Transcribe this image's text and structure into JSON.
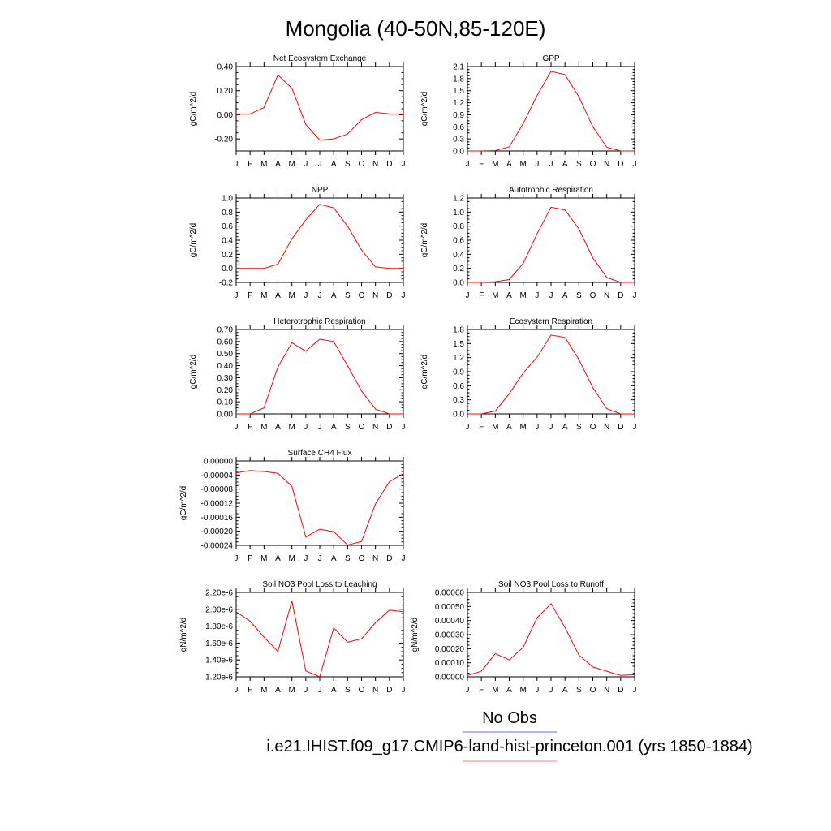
{
  "figure": {
    "title": "Mongolia (40-50N,85-120E)",
    "legend": [
      {
        "label": "No Obs",
        "color": "#6b6bff"
      },
      {
        "label": "i.e21.IHIST.f09_g17.CMIP6-land-hist-princeton.001 (yrs 1850-1884)",
        "color": "#ff7b7b"
      }
    ],
    "series_color": "#ff0000"
  },
  "chart_data": [
    {
      "type": "line",
      "title": "Net Ecosystem Exchange",
      "ylabel": "gC/m^2/d",
      "categories": [
        "J",
        "F",
        "M",
        "A",
        "M",
        "J",
        "J",
        "A",
        "S",
        "O",
        "N",
        "D",
        "J"
      ],
      "ylim": [
        -0.3,
        0.4
      ],
      "yticks": [
        -0.2,
        0.0,
        0.2,
        0.4
      ],
      "ytick_labels": [
        "-0.20",
        "0.00",
        "0.20",
        "0.40"
      ],
      "values": [
        0.005,
        0.007,
        0.06,
        0.33,
        0.22,
        -0.08,
        -0.21,
        -0.2,
        -0.16,
        -0.04,
        0.02,
        0.008,
        0.005
      ]
    },
    {
      "type": "line",
      "title": "GPP",
      "ylabel": "gC/m^2/d",
      "categories": [
        "J",
        "F",
        "M",
        "A",
        "M",
        "J",
        "J",
        "A",
        "S",
        "O",
        "N",
        "D",
        "J"
      ],
      "ylim": [
        0,
        2.1
      ],
      "yticks": [
        0.0,
        0.3,
        0.6,
        0.9,
        1.2,
        1.5,
        1.8,
        2.1
      ],
      "ytick_labels": [
        "0.0",
        "0.3",
        "0.6",
        "0.9",
        "1.2",
        "1.5",
        "1.8",
        "2.1"
      ],
      "values": [
        0.0,
        0.0,
        0.01,
        0.1,
        0.68,
        1.38,
        1.98,
        1.9,
        1.35,
        0.6,
        0.09,
        0.0,
        0.0
      ]
    },
    {
      "type": "line",
      "title": "NPP",
      "ylabel": "gC/m^2/d",
      "categories": [
        "J",
        "F",
        "M",
        "A",
        "M",
        "J",
        "J",
        "A",
        "S",
        "O",
        "N",
        "D",
        "J"
      ],
      "ylim": [
        -0.2,
        1.0
      ],
      "yticks": [
        -0.2,
        0.0,
        0.2,
        0.4,
        0.6,
        0.8,
        1.0
      ],
      "ytick_labels": [
        "-0.2",
        "0.0",
        "0.2",
        "0.4",
        "0.6",
        "0.8",
        "1.0"
      ],
      "values": [
        0.0,
        0.0,
        0.0,
        0.06,
        0.42,
        0.69,
        0.91,
        0.86,
        0.6,
        0.26,
        0.02,
        0.0,
        0.0
      ]
    },
    {
      "type": "line",
      "title": "Autotrophic Respiration",
      "ylabel": "gC/m^2/d",
      "categories": [
        "J",
        "F",
        "M",
        "A",
        "M",
        "J",
        "J",
        "A",
        "S",
        "O",
        "N",
        "D",
        "J"
      ],
      "ylim": [
        0,
        1.2
      ],
      "yticks": [
        0.0,
        0.2,
        0.4,
        0.6,
        0.8,
        1.0,
        1.2
      ],
      "ytick_labels": [
        "0.0",
        "0.2",
        "0.4",
        "0.6",
        "0.8",
        "1.0",
        "1.2"
      ],
      "values": [
        0.0,
        0.0,
        0.01,
        0.04,
        0.27,
        0.69,
        1.07,
        1.03,
        0.76,
        0.35,
        0.07,
        0.0,
        0.0
      ]
    },
    {
      "type": "line",
      "title": "Heterotrophic Respiration",
      "ylabel": "gC/m^2/d",
      "categories": [
        "J",
        "F",
        "M",
        "A",
        "M",
        "J",
        "J",
        "A",
        "S",
        "O",
        "N",
        "D",
        "J"
      ],
      "ylim": [
        0,
        0.7
      ],
      "yticks": [
        0.0,
        0.1,
        0.2,
        0.3,
        0.4,
        0.5,
        0.6,
        0.7
      ],
      "ytick_labels": [
        "0.00",
        "0.10",
        "0.20",
        "0.30",
        "0.40",
        "0.50",
        "0.60",
        "0.70"
      ],
      "values": [
        0.0,
        0.0,
        0.05,
        0.39,
        0.59,
        0.52,
        0.62,
        0.6,
        0.4,
        0.19,
        0.04,
        0.0,
        0.0
      ]
    },
    {
      "type": "line",
      "title": "Ecosystem Respiration",
      "ylabel": "gC/m^2/d",
      "categories": [
        "J",
        "F",
        "M",
        "A",
        "M",
        "J",
        "J",
        "A",
        "S",
        "O",
        "N",
        "D",
        "J"
      ],
      "ylim": [
        0,
        1.8
      ],
      "yticks": [
        0.0,
        0.3,
        0.6,
        0.9,
        1.2,
        1.5,
        1.8
      ],
      "ytick_labels": [
        "0.0",
        "0.3",
        "0.6",
        "0.9",
        "1.2",
        "1.5",
        "1.8"
      ],
      "values": [
        0.0,
        0.0,
        0.06,
        0.43,
        0.87,
        1.21,
        1.68,
        1.63,
        1.16,
        0.56,
        0.11,
        0.0,
        0.0
      ]
    },
    {
      "type": "line",
      "title": "Surface CH4 Flux",
      "ylabel": "gC/m^2/d",
      "categories": [
        "J",
        "F",
        "M",
        "A",
        "M",
        "J",
        "J",
        "A",
        "S",
        "O",
        "N",
        "D",
        "J"
      ],
      "ylim": [
        -0.00024,
        0.0
      ],
      "yticks": [
        -0.00024,
        -0.0002,
        -0.00016,
        -0.00012,
        -8e-05,
        -4e-05,
        0.0
      ],
      "ytick_labels": [
        "-0.00024",
        "-0.00020",
        "-0.00016",
        "-0.00012",
        "-0.00008",
        "-0.00004",
        "0.00000"
      ],
      "values": [
        -3.4e-05,
        -2.7e-05,
        -3e-05,
        -3.5e-05,
        -7.2e-05,
        -0.000216,
        -0.000194,
        -0.000201,
        -0.000239,
        -0.000229,
        -0.000122,
        -5.9e-05,
        -3.6e-05
      ]
    },
    {
      "type": "line",
      "title": "Soil NO3 Pool Loss to Leaching",
      "ylabel": "gN/m^2/d",
      "categories": [
        "J",
        "F",
        "M",
        "A",
        "M",
        "J",
        "J",
        "A",
        "S",
        "O",
        "N",
        "D",
        "J"
      ],
      "ylim": [
        1.2e-06,
        2.2e-06
      ],
      "yticks": [
        1.2e-06,
        1.4e-06,
        1.6e-06,
        1.8e-06,
        2e-06,
        2.2e-06
      ],
      "ytick_labels": [
        "1.20e-6",
        "1.40e-6",
        "1.60e-6",
        "1.80e-6",
        "2.00e-6",
        "2.20e-6"
      ],
      "values": [
        1.97e-06,
        1.86e-06,
        1.67e-06,
        1.5e-06,
        2.1e-06,
        1.27e-06,
        1.2e-06,
        1.78e-06,
        1.61e-06,
        1.65e-06,
        1.84e-06,
        1.99e-06,
        1.97e-06
      ]
    },
    {
      "type": "line",
      "title": "Soil NO3 Pool Loss to Runoff",
      "ylabel": "gN/m^2/d",
      "categories": [
        "J",
        "F",
        "M",
        "A",
        "M",
        "J",
        "J",
        "A",
        "S",
        "O",
        "N",
        "D",
        "J"
      ],
      "ylim": [
        0,
        0.0006
      ],
      "yticks": [
        0.0,
        0.0001,
        0.0002,
        0.0003,
        0.0004,
        0.0005,
        0.0006
      ],
      "ytick_labels": [
        "0.00000",
        "0.00010",
        "0.00020",
        "0.00030",
        "0.00040",
        "0.00050",
        "0.00060"
      ],
      "values": [
        1e-05,
        4e-05,
        0.000165,
        0.00012,
        0.00021,
        0.00042,
        0.00052,
        0.00035,
        0.000155,
        7e-05,
        4e-05,
        1e-05,
        1.5e-05
      ]
    }
  ]
}
